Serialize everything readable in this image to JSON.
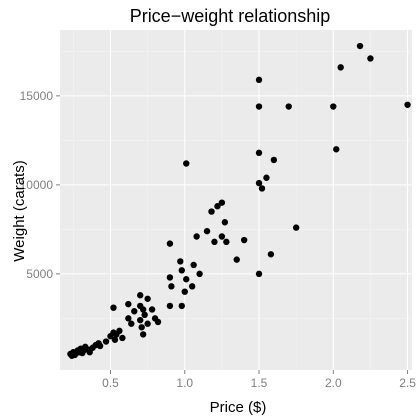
{
  "chart_data": {
    "type": "scatter",
    "title": "Price−weight relationship",
    "xlabel": "Price ($)",
    "ylabel": "Weight (carats)",
    "xlim": [
      0.16,
      2.53
    ],
    "ylim": [
      -400,
      18700
    ],
    "x_ticks": [
      0.5,
      1.0,
      1.5,
      2.0,
      2.5
    ],
    "x_tick_labels": [
      "0.5",
      "1.0",
      "1.5",
      "2.0",
      "2.5"
    ],
    "y_ticks": [
      5000,
      10000,
      15000
    ],
    "y_tick_labels": [
      "5000",
      "10000",
      "15000"
    ],
    "grid": true,
    "legend": "none",
    "colors": {
      "panel": "#ebebeb",
      "grid": "#ffffff",
      "point": "#000000",
      "tick_text": "#7f7f7f"
    },
    "points": [
      {
        "x": 0.23,
        "y": 500
      },
      {
        "x": 0.24,
        "y": 400
      },
      {
        "x": 0.25,
        "y": 600
      },
      {
        "x": 0.26,
        "y": 450
      },
      {
        "x": 0.27,
        "y": 550
      },
      {
        "x": 0.28,
        "y": 700
      },
      {
        "x": 0.29,
        "y": 600
      },
      {
        "x": 0.3,
        "y": 800
      },
      {
        "x": 0.31,
        "y": 550
      },
      {
        "x": 0.32,
        "y": 700
      },
      {
        "x": 0.33,
        "y": 900
      },
      {
        "x": 0.35,
        "y": 750
      },
      {
        "x": 0.36,
        "y": 600
      },
      {
        "x": 0.38,
        "y": 850
      },
      {
        "x": 0.4,
        "y": 1000
      },
      {
        "x": 0.42,
        "y": 1100
      },
      {
        "x": 0.43,
        "y": 950
      },
      {
        "x": 0.47,
        "y": 1200
      },
      {
        "x": 0.5,
        "y": 1500
      },
      {
        "x": 0.52,
        "y": 1700
      },
      {
        "x": 0.52,
        "y": 3100
      },
      {
        "x": 0.53,
        "y": 1300
      },
      {
        "x": 0.54,
        "y": 1600
      },
      {
        "x": 0.56,
        "y": 1800
      },
      {
        "x": 0.58,
        "y": 1400
      },
      {
        "x": 0.62,
        "y": 2500
      },
      {
        "x": 0.62,
        "y": 3300
      },
      {
        "x": 0.64,
        "y": 2200
      },
      {
        "x": 0.66,
        "y": 2900
      },
      {
        "x": 0.7,
        "y": 3200
      },
      {
        "x": 0.7,
        "y": 3800
      },
      {
        "x": 0.7,
        "y": 2400
      },
      {
        "x": 0.71,
        "y": 2000
      },
      {
        "x": 0.72,
        "y": 3000
      },
      {
        "x": 0.72,
        "y": 1600
      },
      {
        "x": 0.73,
        "y": 2700
      },
      {
        "x": 0.75,
        "y": 2200
      },
      {
        "x": 0.75,
        "y": 3600
      },
      {
        "x": 0.78,
        "y": 3000
      },
      {
        "x": 0.8,
        "y": 2500
      },
      {
        "x": 0.82,
        "y": 2300
      },
      {
        "x": 0.9,
        "y": 6700
      },
      {
        "x": 0.9,
        "y": 4800
      },
      {
        "x": 0.9,
        "y": 3200
      },
      {
        "x": 0.91,
        "y": 4300
      },
      {
        "x": 0.97,
        "y": 5700
      },
      {
        "x": 0.98,
        "y": 5200
      },
      {
        "x": 0.98,
        "y": 3200
      },
      {
        "x": 1.0,
        "y": 4000
      },
      {
        "x": 1.01,
        "y": 11200
      },
      {
        "x": 1.01,
        "y": 4700
      },
      {
        "x": 1.05,
        "y": 4300
      },
      {
        "x": 1.06,
        "y": 5500
      },
      {
        "x": 1.08,
        "y": 7100
      },
      {
        "x": 1.1,
        "y": 5000
      },
      {
        "x": 1.15,
        "y": 7400
      },
      {
        "x": 1.18,
        "y": 8500
      },
      {
        "x": 1.2,
        "y": 6800
      },
      {
        "x": 1.22,
        "y": 8800
      },
      {
        "x": 1.25,
        "y": 9000
      },
      {
        "x": 1.25,
        "y": 7100
      },
      {
        "x": 1.27,
        "y": 7900
      },
      {
        "x": 1.28,
        "y": 6800
      },
      {
        "x": 1.35,
        "y": 5800
      },
      {
        "x": 1.4,
        "y": 6900
      },
      {
        "x": 1.5,
        "y": 15900
      },
      {
        "x": 1.5,
        "y": 14400
      },
      {
        "x": 1.5,
        "y": 11800
      },
      {
        "x": 1.5,
        "y": 10100
      },
      {
        "x": 1.5,
        "y": 5000
      },
      {
        "x": 1.52,
        "y": 9800
      },
      {
        "x": 1.55,
        "y": 10400
      },
      {
        "x": 1.58,
        "y": 6100
      },
      {
        "x": 1.6,
        "y": 11400
      },
      {
        "x": 1.7,
        "y": 14400
      },
      {
        "x": 1.75,
        "y": 7600
      },
      {
        "x": 2.0,
        "y": 14400
      },
      {
        "x": 2.02,
        "y": 12000
      },
      {
        "x": 2.05,
        "y": 16600
      },
      {
        "x": 2.18,
        "y": 17800
      },
      {
        "x": 2.25,
        "y": 17100
      },
      {
        "x": 2.5,
        "y": 14500
      }
    ]
  }
}
